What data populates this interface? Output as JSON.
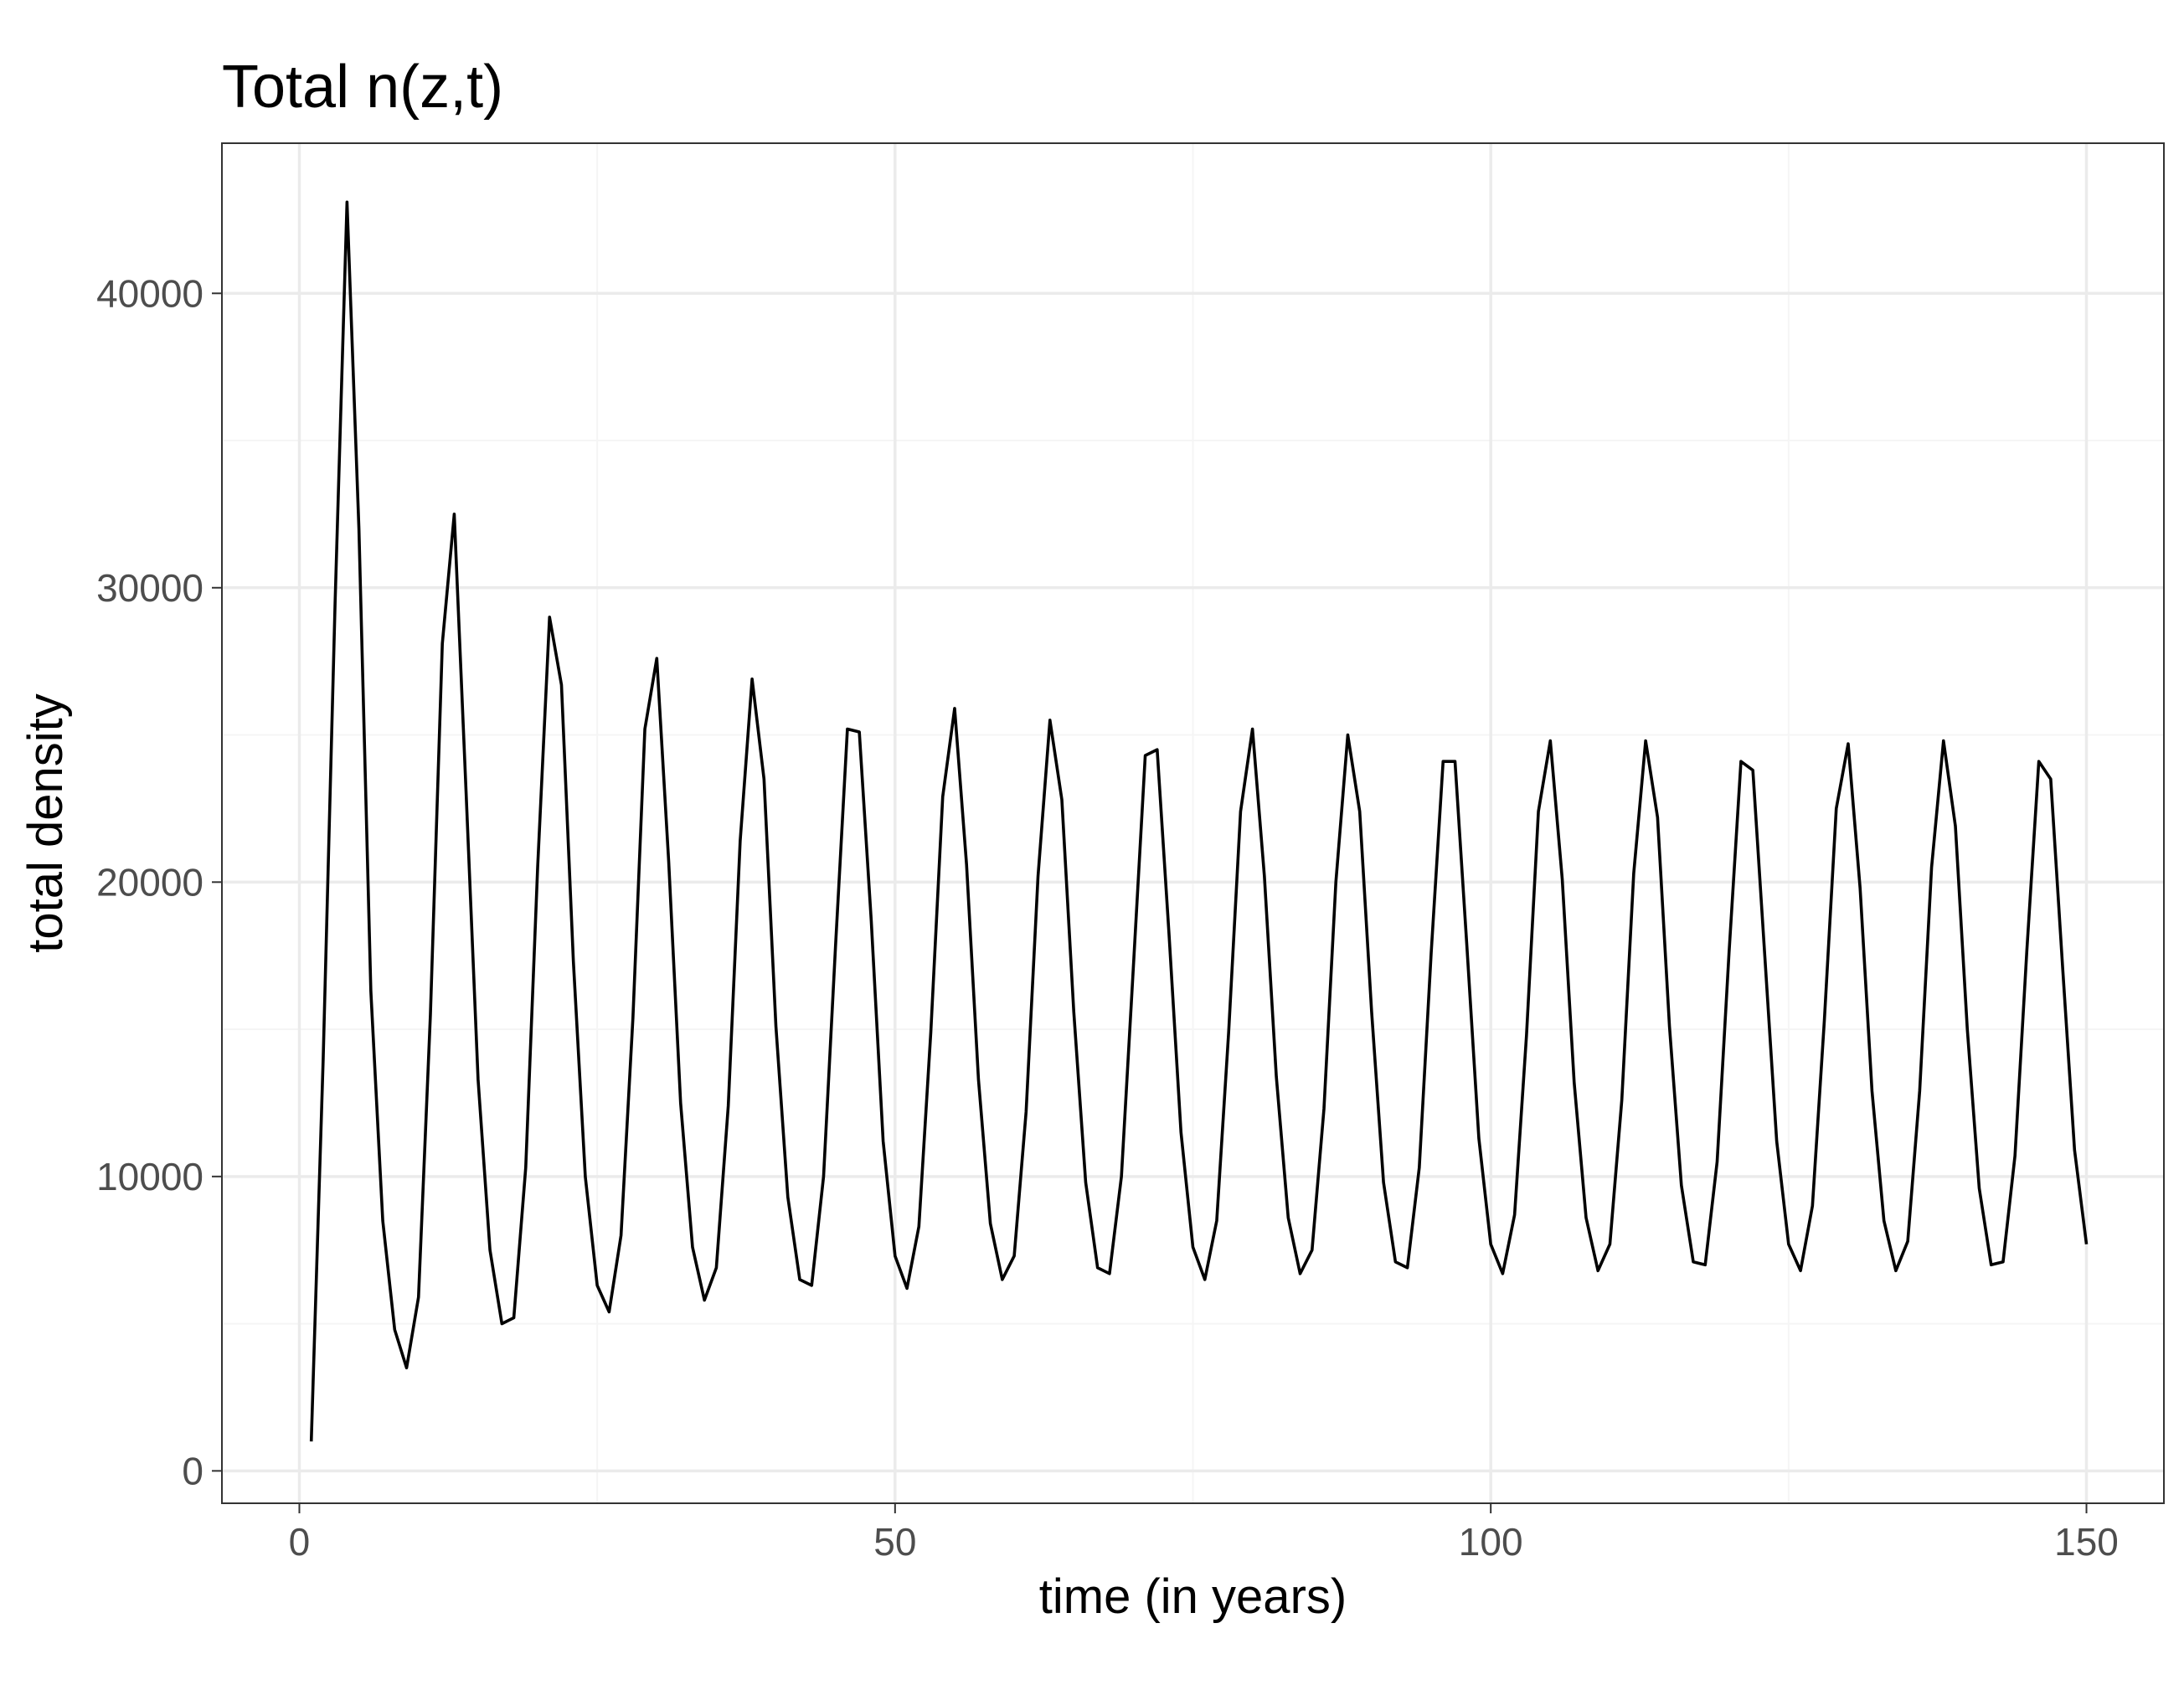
{
  "chart_data": {
    "type": "line",
    "title": "Total n(z,t)",
    "xlabel": "time (in years)",
    "ylabel": "total density",
    "xlim": [
      -6.5,
      156.5
    ],
    "ylim": [
      -1100,
      45100
    ],
    "x_ticks": [
      0,
      50,
      100,
      150
    ],
    "x_tick_labels": [
      "0",
      "50",
      "100",
      "150"
    ],
    "y_ticks": [
      0,
      10000,
      20000,
      30000,
      40000
    ],
    "y_tick_labels": [
      "0",
      "10000",
      "20000",
      "30000",
      "40000"
    ],
    "grid": true,
    "legend": "none",
    "colors": {
      "line": "#000000",
      "grid_major": "#ebebeb",
      "grid_minor": "#f5f5f5",
      "panel_border": "#333333"
    },
    "series": [
      {
        "x": [
          1,
          2,
          3,
          4,
          5,
          6,
          7,
          8,
          9,
          10,
          11,
          12,
          13,
          14,
          15,
          16,
          17,
          18,
          19,
          20,
          21,
          22,
          23,
          24,
          25,
          26,
          27,
          28,
          29,
          30,
          31,
          32,
          33,
          34,
          35,
          36,
          37,
          38,
          39,
          40,
          41,
          42,
          43,
          44,
          45,
          46,
          47,
          48,
          49,
          50,
          51,
          52,
          53,
          54,
          55,
          56,
          57,
          58,
          59,
          60,
          61,
          62,
          63,
          64,
          65,
          66,
          67,
          68,
          69,
          70,
          71,
          72,
          73,
          74,
          75,
          76,
          77,
          78,
          79,
          80,
          81,
          82,
          83,
          84,
          85,
          86,
          87,
          88,
          89,
          90,
          91,
          92,
          93,
          94,
          95,
          96,
          97,
          98,
          99,
          100,
          101,
          102,
          103,
          104,
          105,
          106,
          107,
          108,
          109,
          110,
          111,
          112,
          113,
          114,
          115,
          116,
          117,
          118,
          119,
          120,
          121,
          122,
          123,
          124,
          125,
          126,
          127,
          128,
          129,
          130,
          131,
          132,
          133,
          134,
          135,
          136,
          137,
          138,
          139,
          140,
          141,
          142,
          143,
          144,
          145,
          146,
          147,
          148,
          149,
          150
        ],
        "y": [
          1000,
          14000,
          29500,
          43100,
          32000,
          16300,
          8500,
          4800,
          3500,
          5900,
          15500,
          28100,
          32500,
          23000,
          13300,
          7500,
          5000,
          5200,
          10300,
          20500,
          29000,
          26700,
          17300,
          10000,
          6300,
          5400,
          8000,
          15400,
          25200,
          27600,
          20700,
          12500,
          7600,
          5800,
          6900,
          12400,
          21400,
          26900,
          23500,
          15100,
          9300,
          6500,
          6300,
          10000,
          17800,
          25200,
          25100,
          18700,
          11200,
          7300,
          6200,
          8300,
          14900,
          22900,
          25900,
          20600,
          13300,
          8400,
          6500,
          7300,
          12200,
          20200,
          25500,
          22800,
          15600,
          9800,
          6900,
          6700,
          10000,
          17100,
          24300,
          24500,
          18200,
          11500,
          7600,
          6500,
          8500,
          14900,
          22400,
          25200,
          20200,
          13400,
          8600,
          6700,
          7500,
          12300,
          20000,
          25000,
          22400,
          15600,
          9800,
          7100,
          6900,
          10300,
          17600,
          24100,
          24100,
          17800,
          11300,
          7700,
          6700,
          8700,
          14800,
          22400,
          24800,
          20100,
          13200,
          8600,
          6800,
          7700,
          12600,
          20300,
          24800,
          22200,
          15100,
          9700,
          7100,
          7000,
          10500,
          17600,
          24100,
          23800,
          17500,
          11200,
          7700,
          6800,
          9000,
          15300,
          22500,
          24700,
          19800,
          12900,
          8500,
          6800,
          7800,
          12900,
          20500,
          24800,
          21900,
          15000,
          9600,
          7000,
          7100,
          10700,
          17700,
          24100,
          23500,
          17100,
          10900,
          7700
        ]
      }
    ]
  }
}
